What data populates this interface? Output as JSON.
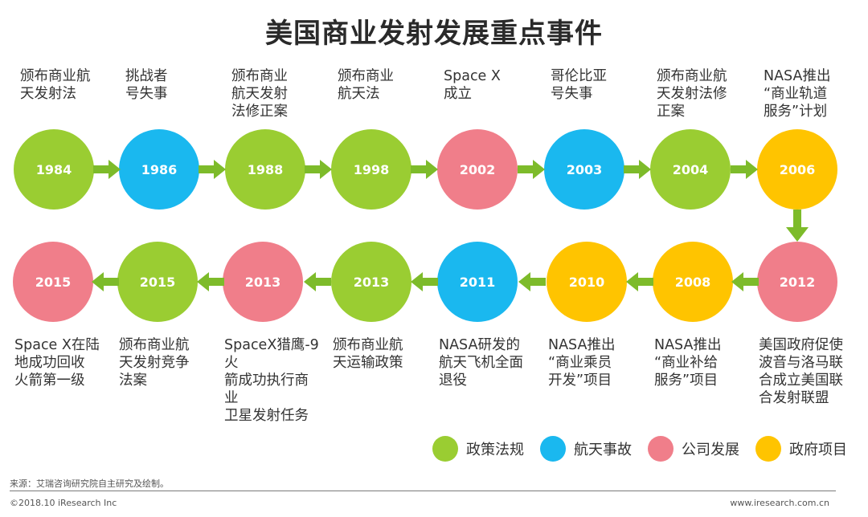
{
  "title": "美国商业发射发展重点事件",
  "colors": {
    "policy": "#9acd32",
    "accident": "#1ab8ef",
    "company": "#f07e8a",
    "government": "#ffc400",
    "arrow": "#7dbb2a"
  },
  "events": [
    {
      "year": "1984",
      "category": "policy",
      "label": "颁布商业航\n天发射法"
    },
    {
      "year": "1986",
      "category": "accident",
      "label": "挑战者\n号失事"
    },
    {
      "year": "1988",
      "category": "policy",
      "label": "颁布商业\n航天发射\n法修正案"
    },
    {
      "year": "1998",
      "category": "policy",
      "label": "颁布商业\n航天法"
    },
    {
      "year": "2002",
      "category": "company",
      "label": "Space X\n成立"
    },
    {
      "year": "2003",
      "category": "accident",
      "label": "哥伦比亚\n号失事"
    },
    {
      "year": "2004",
      "category": "policy",
      "label": "颁布商业航\n天发射法修\n正案"
    },
    {
      "year": "2006",
      "category": "government",
      "label": "NASA推出\n“商业轨道\n服务”计划"
    },
    {
      "year": "2012",
      "category": "company",
      "label": "美国政府促使\n波音与洛马联\n合成立美国联\n合发射联盟"
    },
    {
      "year": "2008",
      "category": "government",
      "label": "NASA推出\n“商业补给\n服务”项目"
    },
    {
      "year": "2010",
      "category": "government",
      "label": "NASA推出\n“商业乘员\n开发”项目"
    },
    {
      "year": "2011",
      "category": "accident",
      "label": "NASA研发的\n航天飞机全面\n退役"
    },
    {
      "year": "2013",
      "category": "policy",
      "label": "颁布商业航\n天运输政策"
    },
    {
      "year": "2013",
      "category": "company",
      "label": "SpaceX猎鹰-9火\n箭成功执行商业\n卫星发射任务"
    },
    {
      "year": "2015",
      "category": "policy",
      "label": "颁布商业航\n天发射竞争\n法案"
    },
    {
      "year": "2015",
      "category": "company",
      "label": "Space X在陆\n地成功回收\n火箭第一级"
    }
  ],
  "legend": [
    {
      "category": "policy",
      "label": "政策法规"
    },
    {
      "category": "accident",
      "label": "航天事故"
    },
    {
      "category": "company",
      "label": "公司发展"
    },
    {
      "category": "government",
      "label": "政府项目"
    }
  ],
  "footer": {
    "source": "来源：艾瑞咨询研究院自主研究及绘制。",
    "copyright": "©2018.10 iResearch Inc",
    "website": "www.iresearch.com.cn"
  }
}
